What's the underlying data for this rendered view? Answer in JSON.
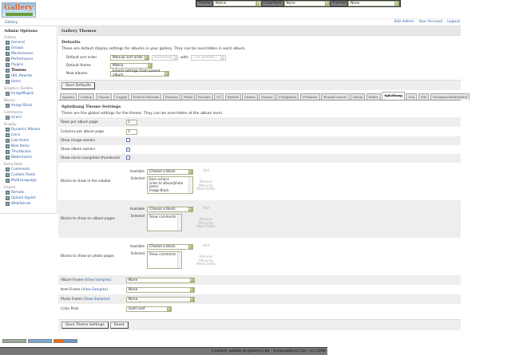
{
  "logo_text": "Gallery",
  "topbar": {
    "theme_label": "Theme",
    "theme_value": "Matrix",
    "colorpack_label": "ColorPack",
    "colorpack_value": "None",
    "frames_label": "Frames",
    "frames_value": "None"
  },
  "breadcrumb": "Gallery",
  "top_links": [
    "Site Admin",
    "Your Account",
    "Logout"
  ],
  "sidebar": {
    "title": "Admin Options",
    "groups": [
      {
        "label": "Gallery",
        "items": [
          {
            "label": "General"
          },
          {
            "label": "Groups"
          },
          {
            "label": "Maintenance"
          },
          {
            "label": "Performance"
          },
          {
            "label": "Plugins"
          },
          {
            "label": "Themes",
            "current": true
          },
          {
            "label": "URL Rewrite"
          },
          {
            "label": "Users"
          }
        ]
      },
      {
        "label": "Graphics Toolkits",
        "items": [
          {
            "label": "ImageMagick"
          }
        ]
      },
      {
        "label": "Blocks",
        "items": [
          {
            "label": "Image Block"
          }
        ]
      },
      {
        "label": "Commerce",
        "items": [
          {
            "label": "eCard"
          }
        ]
      },
      {
        "label": "Display",
        "items": [
          {
            "label": "Dynamic Albums"
          },
          {
            "label": "Icons"
          },
          {
            "label": "Link Items"
          },
          {
            "label": "New Items"
          },
          {
            "label": "Thumbnails"
          },
          {
            "label": "Watermarks"
          }
        ]
      },
      {
        "label": "Extra Data",
        "items": [
          {
            "label": "Comments"
          },
          {
            "label": "Custom Fields"
          },
          {
            "label": "MultiLanguage"
          }
        ]
      },
      {
        "label": "Import",
        "items": [
          {
            "label": "Remote"
          },
          {
            "label": "Upload Applet"
          },
          {
            "label": "Web/Server"
          }
        ]
      }
    ]
  },
  "main": {
    "title": "Gallery Themes",
    "defaults": {
      "heading": "Defaults",
      "description": "These are default display settings for albums in your gallery. They can be overridden in each album.",
      "sort_label": "Default sort order",
      "sort_value": "Manual sort order",
      "sort_dir": "Ascending",
      "with_label": "with",
      "presort": "« no presort »",
      "theme_label": "Default theme",
      "theme_value": "Matrix",
      "new_albums_label": "New albums",
      "new_albums_value": "Inherit settings from parent album",
      "save_label": "Save Defaults"
    },
    "tabs": [
      "Ajaxian",
      "Carbon",
      "Classic",
      "Cupply",
      "EclecticThreads",
      "Floatrix",
      "Fluid",
      "ForSale",
      "G1",
      "Hybrid",
      "Matrix",
      "Nature",
      "PGlightbox",
      "PGtheme",
      "RoundCorners",
      "Siriux",
      "Slider",
      "Splatbang",
      "Tun",
      "Tile",
      "WordpressEmbedded"
    ],
    "active_tab": "Splatbang",
    "settings": {
      "heading": "Splatbang Theme Settings",
      "description": "These are the global settings for the theme. They can be overridden at the album level.",
      "rows_label": "Rows per album page",
      "rows_value": "3",
      "cols_label": "Columns per album page",
      "cols_value": "3",
      "image_owners_label": "Show image owners",
      "image_owners": false,
      "album_owners_label": "Show album owners",
      "album_owners": true,
      "micro_label": "Show micro navigation thumbnails",
      "micro": false,
      "available_label": "Available",
      "selected_label": "Selected",
      "choose": "Choose a block",
      "add": "Add",
      "remove": "Remove",
      "move_up": "Move Up",
      "move_down": "Move Down",
      "sidebar_blocks_label": "Blocks to show in the sidebar",
      "sidebar_blocks": [
        "Item actions",
        "Links to album/photo peers",
        "Image Block"
      ],
      "album_blocks_label": "Blocks to show on album pages",
      "album_blocks": [
        "Show comments"
      ],
      "photo_blocks_label": "Blocks to show on photo pages",
      "photo_blocks": [
        "Show comments"
      ],
      "album_frame_label": "Album Frame",
      "item_frame_label": "Item Frame",
      "photo_frame_label": "Photo Frame",
      "view_samples": "View Samples",
      "album_frame": "None",
      "item_frame": "None",
      "photo_frame": "None",
      "color_pack_label": "Color Pack",
      "color_pack": "Gold Leaf",
      "save_label": "Save Theme Settings",
      "reset_label": "Reset"
    }
  },
  "footer": "Contact: admin at gallery2.hu - www.gallery2.hu - (c) 2006"
}
